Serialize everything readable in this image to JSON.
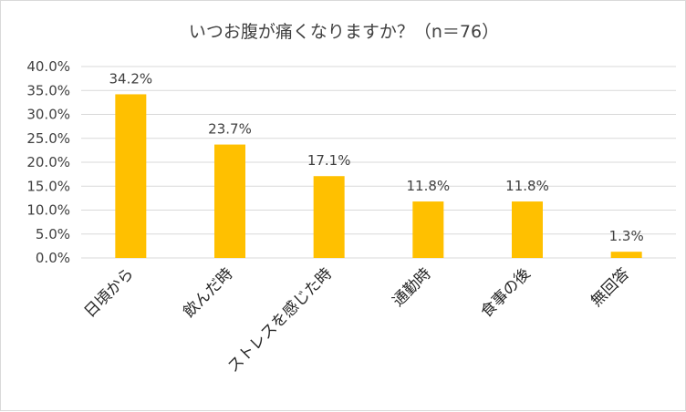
{
  "chart_data": {
    "type": "bar",
    "title": "いつお腹が痛くなりますか？（n＝76）",
    "categories": [
      "日頃から",
      "飲んだ時",
      "ストレスを感じた時",
      "通勤時",
      "食事の後",
      "無回答"
    ],
    "values": [
      34.2,
      23.7,
      17.1,
      11.8,
      11.8,
      1.3
    ],
    "value_labels": [
      "34.2%",
      "23.7%",
      "17.1%",
      "11.8%",
      "11.8%",
      "1.3%"
    ],
    "y_ticks": [
      "0.0%",
      "5.0%",
      "10.0%",
      "15.0%",
      "20.0%",
      "25.0%",
      "30.0%",
      "35.0%",
      "40.0%"
    ],
    "ylim": [
      0,
      40
    ],
    "xlabel": "",
    "ylabel": "",
    "grid": true,
    "bar_color": "#FFC000"
  }
}
